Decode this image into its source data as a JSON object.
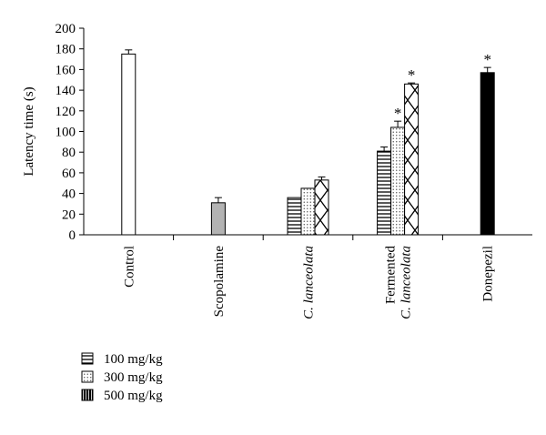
{
  "chart_data": {
    "type": "bar",
    "title": "",
    "ylabel": "Latency time (s)",
    "xlabel": "",
    "ylim": [
      0,
      200
    ],
    "yticks": [
      0,
      20,
      40,
      60,
      80,
      100,
      120,
      140,
      160,
      180,
      200
    ],
    "grid": false,
    "legend_position": "bottom-left",
    "groups": [
      {
        "label_lines": [
          {
            "text": "Control",
            "italic": false
          }
        ],
        "bars": [
          {
            "value": 175,
            "error": 4,
            "fill": "white",
            "significant": false
          }
        ]
      },
      {
        "label_lines": [
          {
            "text": "Scopolamine",
            "italic": false
          }
        ],
        "bars": [
          {
            "value": 31,
            "error": 5,
            "fill": "gray",
            "significant": false
          }
        ]
      },
      {
        "label_lines": [
          {
            "text": "C. lanceolata",
            "italic": true
          }
        ],
        "bars": [
          {
            "value": 36,
            "error": 0,
            "fill": "horizontal-lines",
            "significant": false
          },
          {
            "value": 45,
            "error": 0,
            "fill": "dots",
            "significant": false
          },
          {
            "value": 53,
            "error": 3,
            "fill": "diamond",
            "significant": false
          }
        ]
      },
      {
        "label_lines": [
          {
            "text": "Fermented",
            "italic": false
          },
          {
            "text": "C. lanceolata",
            "italic": true
          }
        ],
        "bars": [
          {
            "value": 81,
            "error": 4,
            "fill": "horizontal-lines",
            "significant": false
          },
          {
            "value": 104,
            "error": 6,
            "fill": "dots",
            "significant": true
          },
          {
            "value": 146,
            "error": 1,
            "fill": "diamond",
            "significant": true
          }
        ]
      },
      {
        "label_lines": [
          {
            "text": "Donepezil",
            "italic": false
          }
        ],
        "bars": [
          {
            "value": 157,
            "error": 5,
            "fill": "black",
            "significant": true
          }
        ]
      }
    ],
    "significance_marker": "*",
    "legend": [
      {
        "label": "100 mg/kg",
        "fill": "horizontal-lines"
      },
      {
        "label": "300 mg/kg",
        "fill": "dots"
      },
      {
        "label": "500 mg/kg",
        "fill": "black-stripes"
      }
    ]
  }
}
